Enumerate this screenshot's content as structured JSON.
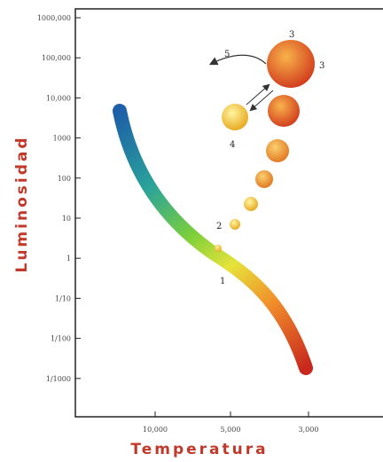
{
  "y_axis": {
    "label": "Luminosidad",
    "ticks": [
      "1000,000",
      "100,000",
      "10,000",
      "1000",
      "100",
      "10",
      "1",
      "1/10",
      "1/100",
      "1/1000"
    ]
  },
  "x_axis": {
    "label": "Temperatura",
    "ticks": [
      "10,000",
      "5,000",
      "3,000"
    ]
  },
  "stages": [
    "1",
    "2",
    "3",
    "3",
    "4",
    "5"
  ]
}
